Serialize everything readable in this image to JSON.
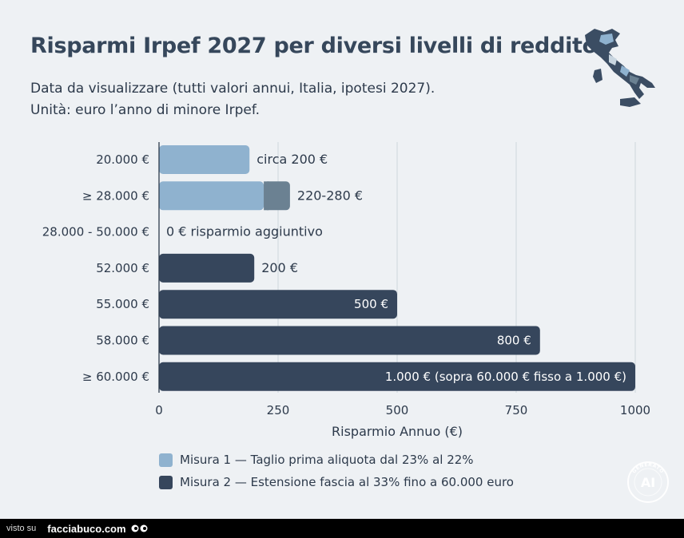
{
  "header": {
    "title": "Risparmi Irpef 2027 per diversi livelli di reddito",
    "subtitle_line1": "Data da visualizzare (tutti valori annui, Italia, ipotesi 2027).",
    "subtitle_line2": "Unità: euro l’anno di minore Irpef."
  },
  "chart_data": {
    "type": "bar",
    "orientation": "horizontal",
    "xlabel": "Risparmio Annuo (€)",
    "xlim": [
      0,
      1000
    ],
    "xticks": [
      0,
      250,
      500,
      750,
      1000
    ],
    "grid": true,
    "categories": [
      "20.000 €",
      "≥ 28.000 €",
      "28.000 - 50.000 €",
      "52.000 €",
      "55.000 €",
      "58.000 €",
      "≥ 60.000 €"
    ],
    "series": [
      {
        "name": "Misura 1 — Taglio prima aliquota dal 23% al 22%",
        "color": "#8fb2cf",
        "values": [
          190,
          220,
          0,
          0,
          0,
          0,
          0
        ]
      },
      {
        "name": "Misura 2 — Estensione fascia al 33% fino a 60.000 euro",
        "color": "#36465c",
        "values": [
          0,
          0,
          0,
          200,
          500,
          800,
          1000
        ]
      }
    ],
    "range_extension": {
      "category": "≥ 28.000 €",
      "from": 220,
      "to": 275,
      "color": "#6b8192"
    },
    "data_labels": [
      "circa 200 €",
      "220-280 €",
      "0 € risparmio aggiuntivo",
      "200 €",
      "500 €",
      "800 €",
      "1.000 € (sopra 60.000 € fisso a 1.000 €)"
    ],
    "label_inside": [
      false,
      false,
      false,
      false,
      true,
      true,
      true
    ],
    "legend_position": "bottom-left"
  },
  "legend": [
    {
      "label": "Misura 1 — Taglio prima aliquota dal 23% al 22%",
      "color": "#8fb2cf"
    },
    {
      "label": "Misura 2 — Estensione fascia al 33% fino a 60.000 euro",
      "color": "#36465c"
    }
  ],
  "badge": {
    "text": "AI",
    "ring_text": "GENERATO"
  },
  "footer": {
    "visto": "visto su",
    "brand": "facciabuco.com"
  }
}
